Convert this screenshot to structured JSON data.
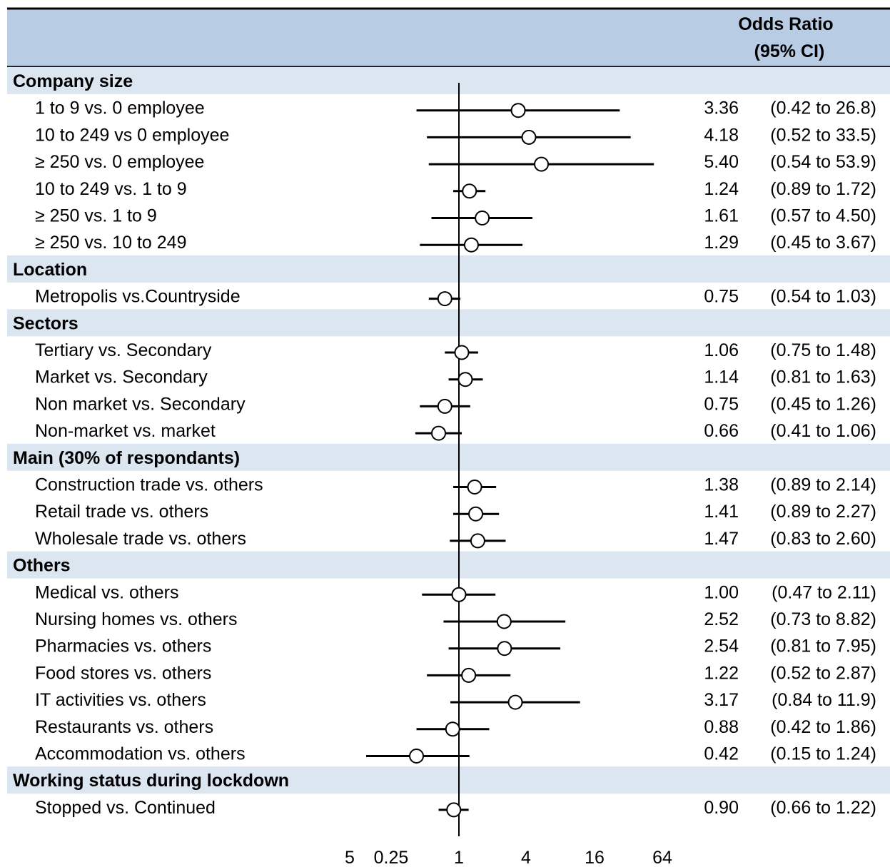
{
  "header": {
    "or_title_line1": "Odds Ratio",
    "or_title_line2": "(95% CI)"
  },
  "colors": {
    "header_bg": "#b8cce4",
    "group_bg": "#dce6f1",
    "line": "#000000",
    "marker_fill": "#ffffff"
  },
  "chart_data": {
    "type": "forest",
    "x_scale": "log2",
    "reference_value": 1,
    "x_ticks": [
      "5",
      "0.25",
      "1",
      "4",
      "16",
      "64"
    ],
    "xlim": [
      0.11,
      90
    ],
    "groups": [
      {
        "name": "Company size",
        "rows": [
          {
            "label": "1 to 9 vs. 0 employee",
            "or": 3.36,
            "lo": 0.42,
            "hi": 26.8,
            "or_text": "3.36",
            "ci_text": "(0.42 to 26.8)"
          },
          {
            "label": "10 to 249 vs 0 employee",
            "or": 4.18,
            "lo": 0.52,
            "hi": 33.5,
            "or_text": "4.18",
            "ci_text": "(0.52 to 33.5)"
          },
          {
            "label": "≥ 250 vs. 0 employee",
            "or": 5.4,
            "lo": 0.54,
            "hi": 53.9,
            "or_text": "5.40",
            "ci_text": "(0.54 to 53.9)"
          },
          {
            "label": "10 to 249 vs. 1 to 9",
            "or": 1.24,
            "lo": 0.89,
            "hi": 1.72,
            "or_text": "1.24",
            "ci_text": "(0.89 to 1.72)"
          },
          {
            "label": " ≥ 250 vs. 1 to 9",
            "or": 1.61,
            "lo": 0.57,
            "hi": 4.5,
            "or_text": "1.61",
            "ci_text": "(0.57 to 4.50)"
          },
          {
            "label": " ≥ 250 vs. 10 to 249",
            "or": 1.29,
            "lo": 0.45,
            "hi": 3.67,
            "or_text": "1.29",
            "ci_text": "(0.45 to 3.67)"
          }
        ]
      },
      {
        "name": "Location",
        "rows": [
          {
            "label": "Metropolis vs.Countryside",
            "or": 0.75,
            "lo": 0.54,
            "hi": 1.03,
            "or_text": "0.75",
            "ci_text": "(0.54 to 1.03)"
          }
        ]
      },
      {
        "name": "Sectors",
        "rows": [
          {
            "label": "Tertiary vs. Secondary",
            "or": 1.06,
            "lo": 0.75,
            "hi": 1.48,
            "or_text": "1.06",
            "ci_text": "(0.75 to 1.48)"
          },
          {
            "label": "Market vs. Secondary",
            "or": 1.14,
            "lo": 0.81,
            "hi": 1.63,
            "or_text": "1.14",
            "ci_text": "(0.81 to 1.63)"
          },
          {
            "label": "Non market vs. Secondary",
            "or": 0.75,
            "lo": 0.45,
            "hi": 1.26,
            "or_text": "0.75",
            "ci_text": "(0.45 to 1.26)"
          },
          {
            "label": "Non-market vs. market",
            "or": 0.66,
            "lo": 0.41,
            "hi": 1.06,
            "or_text": "0.66",
            "ci_text": "(0.41 to 1.06)"
          }
        ]
      },
      {
        "name": "Main (30% of respondants)",
        "rows": [
          {
            "label": "Construction trade vs. others",
            "or": 1.38,
            "lo": 0.89,
            "hi": 2.14,
            "or_text": "1.38",
            "ci_text": "(0.89 to 2.14)"
          },
          {
            "label": "Retail trade vs. others",
            "or": 1.41,
            "lo": 0.89,
            "hi": 2.27,
            "or_text": "1.41",
            "ci_text": "(0.89 to 2.27)"
          },
          {
            "label": "Wholesale trade vs. others",
            "or": 1.47,
            "lo": 0.83,
            "hi": 2.6,
            "or_text": "1.47",
            "ci_text": "(0.83 to 2.60)"
          }
        ]
      },
      {
        "name": "Others",
        "rows": [
          {
            "label": "Medical vs. others",
            "or": 1.0,
            "lo": 0.47,
            "hi": 2.11,
            "or_text": "1.00",
            "ci_text": "(0.47 to 2.11)"
          },
          {
            "label": "Nursing homes vs. others",
            "or": 2.52,
            "lo": 0.73,
            "hi": 8.82,
            "or_text": "2.52",
            "ci_text": "(0.73 to 8.82)"
          },
          {
            "label": "Pharmacies vs. others",
            "or": 2.54,
            "lo": 0.81,
            "hi": 7.95,
            "or_text": "2.54",
            "ci_text": "(0.81 to 7.95)"
          },
          {
            "label": "Food stores vs. others",
            "or": 1.22,
            "lo": 0.52,
            "hi": 2.87,
            "or_text": "1.22",
            "ci_text": "(0.52 to 2.87)"
          },
          {
            "label": "IT activities vs. others",
            "or": 3.17,
            "lo": 0.84,
            "hi": 11.9,
            "or_text": "3.17",
            "ci_text": "(0.84 to 11.9)"
          },
          {
            "label": "Restaurants vs. others",
            "or": 0.88,
            "lo": 0.42,
            "hi": 1.86,
            "or_text": "0.88",
            "ci_text": "(0.42 to 1.86)"
          },
          {
            "label": "Accommodation vs. others",
            "or": 0.42,
            "lo": 0.15,
            "hi": 1.24,
            "or_text": "0.42",
            "ci_text": "(0.15 to 1.24)"
          }
        ]
      },
      {
        "name": "Working status during lockdown",
        "rows": [
          {
            "label": "Stopped vs. Continued",
            "or": 0.9,
            "lo": 0.66,
            "hi": 1.22,
            "or_text": "0.90",
            "ci_text": "(0.66 to 1.22)"
          }
        ]
      }
    ]
  }
}
